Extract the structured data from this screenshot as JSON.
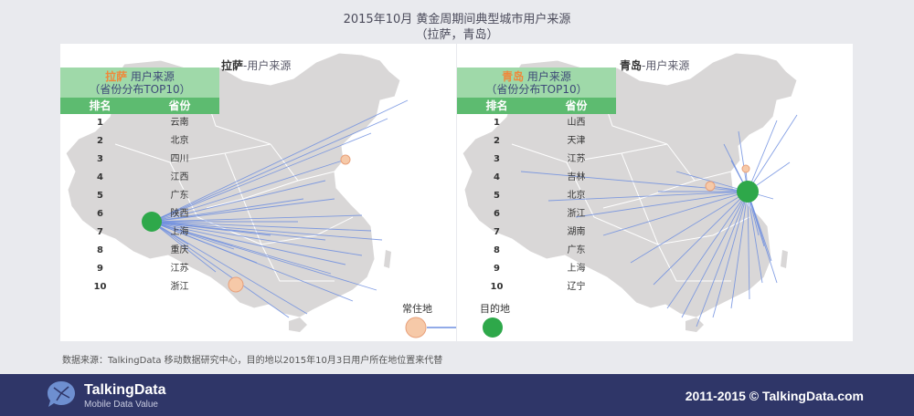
{
  "title": {
    "line1": "2015年10月 黄金周期间典型城市用户来源",
    "line2": "（拉萨，青岛）"
  },
  "left_panel": {
    "map_title_city": "拉萨",
    "map_title_rest": "-用户来源",
    "table_city": "拉萨",
    "table_title_rest": " 用户来源",
    "table_subtitle": "（省份分布TOP10）",
    "col_rank": "排名",
    "col_province": "省份",
    "rows": [
      {
        "rank": "1",
        "province": "云南"
      },
      {
        "rank": "2",
        "province": "北京"
      },
      {
        "rank": "3",
        "province": "四川"
      },
      {
        "rank": "4",
        "province": "江西"
      },
      {
        "rank": "5",
        "province": "广东"
      },
      {
        "rank": "6",
        "province": "陕西"
      },
      {
        "rank": "7",
        "province": "上海"
      },
      {
        "rank": "8",
        "province": "重庆"
      },
      {
        "rank": "9",
        "province": "江苏"
      },
      {
        "rank": "10",
        "province": "浙江"
      }
    ]
  },
  "right_panel": {
    "map_title_city": "青岛",
    "map_title_rest": "-用户来源",
    "table_city": "青岛",
    "table_title_rest": " 用户来源",
    "table_subtitle": "（省份分布TOP10）",
    "col_rank": "排名",
    "col_province": "省份",
    "rows": [
      {
        "rank": "1",
        "province": "山西"
      },
      {
        "rank": "2",
        "province": "天津"
      },
      {
        "rank": "3",
        "province": "江苏"
      },
      {
        "rank": "4",
        "province": "吉林"
      },
      {
        "rank": "5",
        "province": "北京"
      },
      {
        "rank": "6",
        "province": "浙江"
      },
      {
        "rank": "7",
        "province": "湖南"
      },
      {
        "rank": "8",
        "province": "广东"
      },
      {
        "rank": "9",
        "province": "上海"
      },
      {
        "rank": "10",
        "province": "辽宁"
      }
    ]
  },
  "key": {
    "origin_label": "常住地",
    "destination_label": "目的地"
  },
  "source_note": "数据来源：TalkingData 移动数据研究中心，目的地以2015年10月3日用户所在地位置来代替",
  "footer": {
    "brand": "TalkingData",
    "brand_sub": "Mobile Data Value",
    "copyright": "2011-2015 © TalkingData.com"
  },
  "colors": {
    "table_header": "#5dbb70",
    "table_title_bg": "#9fd9a9",
    "highlight_city": "#f0883a",
    "destination": "#2ea84a",
    "origin": "#f6c9a8",
    "flow_line": "#6f8fe0",
    "map_fill": "#d9d7d7",
    "footer_bg": "#2f3668"
  }
}
